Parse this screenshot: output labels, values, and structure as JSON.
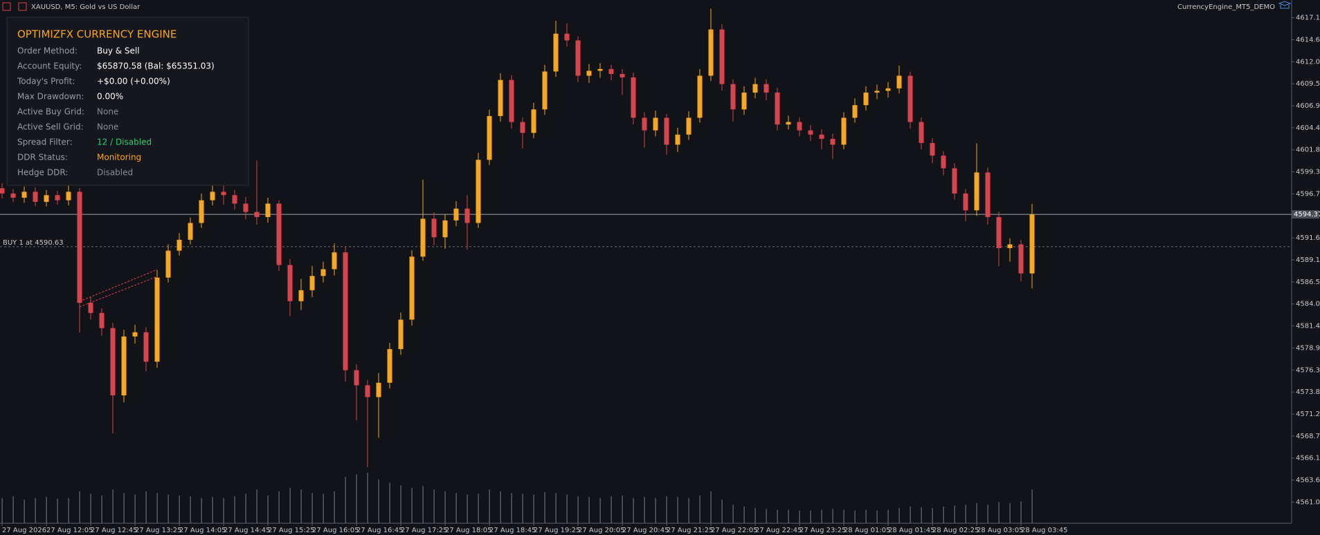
{
  "header": {
    "symbol": "XAUUSD, M5:  Gold vs US Dollar",
    "account": "CurrencyEngine_MT5_DEMO"
  },
  "panel": {
    "title": "OPTIMIZFX CURRENCY ENGINE",
    "title_color": "#f5a623",
    "rows": [
      {
        "label": "Order Method:",
        "value": "Buy & Sell",
        "color": "#ffffff"
      },
      {
        "label": "Account Equity:",
        "value": "$65870.58 (Bal: $65351.03)",
        "color": "#ffffff"
      },
      {
        "label": "Today's Profit:",
        "value": "+$0.00 (+0.00%)",
        "color": "#ffffff"
      },
      {
        "label": "Max Drawdown:",
        "value": "0.00%",
        "color": "#ffffff"
      },
      {
        "label": "Active Buy Grid:",
        "value": "None",
        "color": "#8a8c92"
      },
      {
        "label": "Active Sell Grid:",
        "value": "None",
        "color": "#8a8c92"
      },
      {
        "label": "Spread Filter:",
        "value": "12 / Disabled",
        "color": "#2ecc71"
      },
      {
        "label": "DDR Status:",
        "value": "Monitoring",
        "color": "#f5a623"
      },
      {
        "label": "Hedge DDR:",
        "value": "Disabled",
        "color": "#8a8c92"
      }
    ]
  },
  "chart_data": {
    "type": "candlestick",
    "up_color": "#f5a623",
    "down_color": "#d9434e",
    "volume_color": "#6b6d72",
    "ylim": [
      4558.6,
      4619.2
    ],
    "yticks": [
      4617.15,
      {
        "value": 4614.6,
        "label": "4614.60"
      },
      4612.05,
      {
        "value": 4609.5,
        "label": "4609.50"
      },
      4606.95,
      {
        "value": 4604.4,
        "label": "4604.40"
      },
      4601.85,
      {
        "value": 4599.3,
        "label": "4599.30"
      },
      4596.75,
      4591.65,
      {
        "value": 4589.1,
        "label": "4589.10"
      },
      4586.55,
      {
        "value": 4584,
        "label": "4584.00"
      },
      4581.45,
      {
        "value": 4578.9,
        "label": "4578.90"
      },
      4576.35,
      {
        "value": 4573.8,
        "label": "4573.80"
      },
      4571.25,
      {
        "value": 4568.7,
        "label": "4568.70"
      },
      4566.15,
      {
        "value": 4563.6,
        "label": "4563.60"
      },
      4561.05
    ],
    "time_labels": [
      "27 Aug 2026",
      "27 Aug 12:05",
      "27 Aug 12:45",
      "27 Aug 13:25",
      "27 Aug 14:05",
      "27 Aug 14:45",
      "27 Aug 15:25",
      "27 Aug 16:05",
      "27 Aug 16:45",
      "27 Aug 17:25",
      "27 Aug 18:05",
      "27 Aug 18:45",
      "27 Aug 19:25",
      "27 Aug 20:05",
      "27 Aug 20:45",
      "27 Aug 21:25",
      "27 Aug 22:05",
      "27 Aug 22:45",
      "27 Aug 23:25",
      "28 Aug 01:05",
      "28 Aug 01:45",
      "28 Aug 02:25",
      "28 Aug 03:05",
      "28 Aug 03:45"
    ],
    "current_price": 4594.37,
    "buy_line": {
      "label": "BUY 1 at 4590.63",
      "value": 4590.63
    },
    "open": [
      4597.4,
      4596.79,
      4596.3,
      4596.99,
      4595.82,
      4596.6,
      4596.01,
      4596.99,
      4584.13,
      4582.96,
      4581.2,
      4573.41,
      4580.23,
      4580.72,
      4577.31,
      4587.05,
      4590.17,
      4591.43,
      4593.38,
      4596.01,
      4596.99,
      4596.6,
      4595.62,
      4594.65,
      4594.06,
      4595.62,
      4588.51,
      4584.32,
      4585.59,
      4587.24,
      4588.02,
      4589.97,
      4576.33,
      4574.58,
      4573.21,
      4574.87,
      4578.77,
      4582.18,
      4589.48,
      4593.87,
      4591.72,
      4593.67,
      4595.04,
      4593.38,
      4600.69,
      4605.76,
      4609.94,
      4605.07,
      4603.81,
      4606.53,
      4610.92,
      4615.3,
      4614.52,
      4610.43,
      4611.0,
      4611.21,
      4610.63,
      4610.24,
      4605.56,
      4604.1,
      4605.56,
      4602.44,
      4603.61,
      4605.56,
      4610.43,
      4615.79,
      4609.46,
      4606.53,
      4608.48,
      4609.46,
      4608.48,
      4604.78,
      4605.07,
      4604.1,
      4603.61,
      4603.12,
      4602.44,
      4605.56,
      4607.02,
      4608.48,
      4608.68,
      4608.97,
      4610.43,
      4605.07,
      4602.64,
      4601.18,
      4599.71,
      4596.79,
      4594.84,
      4599.23,
      4594.06,
      4590.46,
      4590.9,
      4587.53
    ],
    "high": [
      4598.0,
      4597.3,
      4597.6,
      4597.5,
      4597.2,
      4597.1,
      4597.8,
      4597.4,
      4584.8,
      4583.5,
      4581.8,
      4581.0,
      4581.6,
      4581.3,
      4587.9,
      4590.9,
      4592.2,
      4594.0,
      4596.8,
      4598.0,
      4597.8,
      4597.2,
      4596.4,
      4600.6,
      4596.3,
      4596.0,
      4589.2,
      4586.9,
      4588.4,
      4588.9,
      4591.0,
      4590.6,
      4577.0,
      4575.2,
      4576.0,
      4579.5,
      4583.0,
      4590.2,
      4598.4,
      4594.6,
      4594.4,
      4595.9,
      4596.6,
      4601.5,
      4606.5,
      4610.7,
      4610.5,
      4605.6,
      4607.3,
      4611.7,
      4616.8,
      4616.5,
      4615.0,
      4611.8,
      4611.9,
      4611.7,
      4611.2,
      4610.8,
      4606.2,
      4606.4,
      4606.0,
      4604.4,
      4606.3,
      4611.2,
      4618.2,
      4616.4,
      4610.0,
      4609.2,
      4610.2,
      4610.0,
      4609.0,
      4605.8,
      4605.6,
      4604.7,
      4604.2,
      4603.7,
      4606.2,
      4607.8,
      4609.2,
      4609.4,
      4609.7,
      4611.6,
      4610.9,
      4605.6,
      4603.2,
      4601.7,
      4600.3,
      4597.3,
      4602.6,
      4599.8,
      4594.7,
      4591.6,
      4591.4,
      4595.6
    ],
    "low": [
      4596.2,
      4595.8,
      4595.7,
      4595.3,
      4595.3,
      4595.5,
      4595.4,
      4580.7,
      4582.2,
      4580.3,
      4569.0,
      4572.6,
      4579.4,
      4576.2,
      4576.6,
      4586.5,
      4589.6,
      4590.9,
      4592.8,
      4595.4,
      4595.5,
      4594.9,
      4593.8,
      4593.2,
      4593.4,
      4587.8,
      4582.6,
      4583.3,
      4584.8,
      4586.5,
      4587.3,
      4575.0,
      4570.5,
      4565.1,
      4568.5,
      4574.2,
      4578.1,
      4581.5,
      4589.0,
      4590.8,
      4590.4,
      4593.0,
      4590.3,
      4592.8,
      4600.1,
      4605.1,
      4604.3,
      4602.0,
      4603.2,
      4605.9,
      4610.3,
      4613.8,
      4609.7,
      4609.6,
      4610.2,
      4609.9,
      4608.2,
      4604.8,
      4602.1,
      4603.4,
      4601.3,
      4601.6,
      4603.0,
      4605.0,
      4609.8,
      4608.7,
      4605.1,
      4605.9,
      4607.8,
      4607.6,
      4604.1,
      4604.2,
      4603.4,
      4602.9,
      4601.9,
      4600.8,
      4601.9,
      4605.0,
      4606.4,
      4607.7,
      4607.9,
      4608.4,
      4604.3,
      4601.9,
      4600.3,
      4598.9,
      4596.1,
      4593.6,
      4594.2,
      4593.2,
      4588.4,
      4588.9,
      4586.6,
      4585.8
    ],
    "close": [
      4596.79,
      4596.3,
      4596.99,
      4595.82,
      4596.6,
      4596.01,
      4596.99,
      4584.13,
      4582.96,
      4581.2,
      4573.41,
      4580.23,
      4580.72,
      4577.31,
      4587.05,
      4590.17,
      4591.43,
      4593.38,
      4596.01,
      4596.99,
      4596.6,
      4595.62,
      4594.65,
      4594.06,
      4595.62,
      4588.51,
      4584.32,
      4585.59,
      4587.24,
      4588.02,
      4589.97,
      4576.33,
      4574.58,
      4573.21,
      4574.87,
      4578.77,
      4582.18,
      4589.48,
      4593.87,
      4591.72,
      4593.67,
      4595.04,
      4593.38,
      4600.69,
      4605.76,
      4609.94,
      4605.07,
      4603.81,
      4606.53,
      4610.92,
      4615.3,
      4614.52,
      4610.43,
      4611.0,
      4611.21,
      4610.63,
      4610.24,
      4605.56,
      4604.1,
      4605.56,
      4602.44,
      4603.61,
      4605.56,
      4610.43,
      4615.79,
      4609.46,
      4606.53,
      4608.48,
      4609.46,
      4608.48,
      4604.78,
      4605.07,
      4604.1,
      4603.61,
      4603.12,
      4602.44,
      4605.56,
      4607.02,
      4608.48,
      4608.68,
      4608.97,
      4610.43,
      4605.07,
      4602.64,
      4601.18,
      4599.71,
      4596.79,
      4594.84,
      4599.23,
      4594.06,
      4590.46,
      4590.9,
      4587.53,
      4594.37
    ],
    "volume": [
      30,
      32,
      28,
      30,
      31,
      29,
      30,
      38,
      35,
      33,
      40,
      36,
      34,
      38,
      36,
      34,
      33,
      32,
      30,
      31,
      30,
      32,
      35,
      40,
      33,
      38,
      42,
      40,
      36,
      35,
      38,
      55,
      58,
      60,
      52,
      48,
      45,
      42,
      44,
      40,
      38,
      36,
      34,
      35,
      40,
      38,
      36,
      35,
      34,
      37,
      36,
      34,
      32,
      31,
      30,
      32,
      33,
      30,
      31,
      30,
      32,
      31,
      30,
      33,
      38,
      28,
      22,
      20,
      18,
      17,
      16,
      16,
      15,
      15,
      16,
      17,
      16,
      15,
      16,
      15,
      16,
      18,
      20,
      19,
      18,
      20,
      21,
      22,
      24,
      22,
      25,
      24,
      26,
      40
    ],
    "vlim": [
      0,
      100
    ]
  }
}
